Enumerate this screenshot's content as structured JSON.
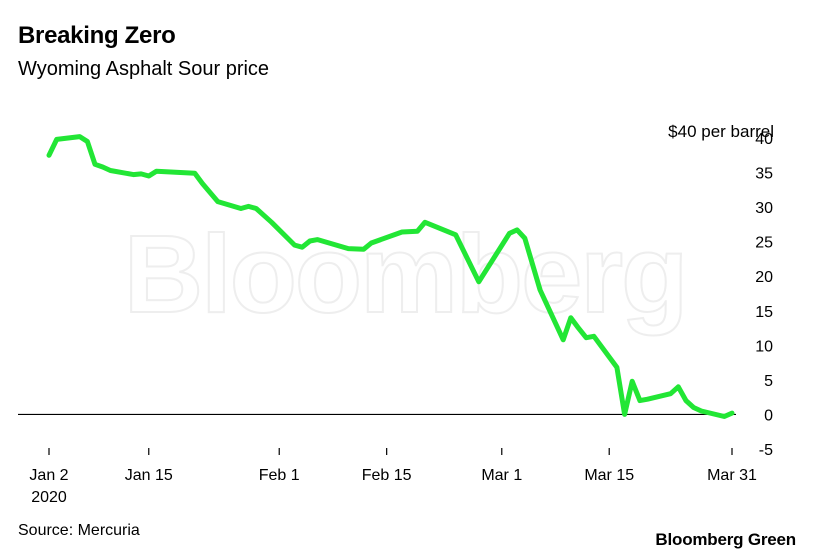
{
  "header": {
    "title": "Breaking Zero",
    "subtitle": "Wyoming Asphalt Sour price"
  },
  "footer": {
    "source": "Source: Mercuria",
    "brand": "Bloomberg Green"
  },
  "watermark": "Bloomberg",
  "colors": {
    "line": "#22e635",
    "zero_line": "#000000",
    "text": "#000000",
    "background": "#ffffff"
  },
  "chart_data": {
    "type": "line",
    "title": "Breaking Zero",
    "subtitle": "Wyoming Asphalt Sour price",
    "ylabel": "$40 per barrel",
    "ylim": [
      -5,
      40
    ],
    "yticks": [
      40,
      35,
      30,
      25,
      20,
      15,
      10,
      5,
      0,
      -5
    ],
    "xlim": [
      "2020-01-02",
      "2020-03-31"
    ],
    "xticks": [
      {
        "date": "2020-01-02",
        "label": "Jan 2",
        "sublabel": "2020"
      },
      {
        "date": "2020-01-15",
        "label": "Jan 15"
      },
      {
        "date": "2020-02-01",
        "label": "Feb 1"
      },
      {
        "date": "2020-02-15",
        "label": "Feb 15"
      },
      {
        "date": "2020-03-01",
        "label": "Mar 1"
      },
      {
        "date": "2020-03-15",
        "label": "Mar 15"
      },
      {
        "date": "2020-03-31",
        "label": "Mar 31"
      }
    ],
    "y_axis_position": "right",
    "grid": false,
    "series": [
      {
        "x": [
          "2020-01-02",
          "2020-01-03",
          "2020-01-06",
          "2020-01-07",
          "2020-01-08",
          "2020-01-09",
          "2020-01-10",
          "2020-01-13",
          "2020-01-14",
          "2020-01-15",
          "2020-01-16",
          "2020-01-21",
          "2020-01-22",
          "2020-01-24",
          "2020-01-27",
          "2020-01-28",
          "2020-01-29",
          "2020-01-31",
          "2020-02-03",
          "2020-02-04",
          "2020-02-05",
          "2020-02-06",
          "2020-02-10",
          "2020-02-12",
          "2020-02-13",
          "2020-02-17",
          "2020-02-19",
          "2020-02-20",
          "2020-02-24",
          "2020-02-27",
          "2020-03-02",
          "2020-03-03",
          "2020-03-04",
          "2020-03-06",
          "2020-03-09",
          "2020-03-10",
          "2020-03-11",
          "2020-03-12",
          "2020-03-13",
          "2020-03-16",
          "2020-03-17",
          "2020-03-18",
          "2020-03-19",
          "2020-03-20",
          "2020-03-23",
          "2020-03-24",
          "2020-03-25",
          "2020-03-26",
          "2020-03-27",
          "2020-03-30",
          "2020-03-31"
        ],
        "values": [
          37.5,
          39.8,
          40.2,
          39.5,
          36.2,
          35.8,
          35.3,
          34.7,
          34.8,
          34.5,
          35.2,
          34.9,
          33.4,
          30.8,
          29.8,
          30.1,
          29.8,
          27.8,
          24.5,
          24.2,
          25.1,
          25.3,
          24.0,
          23.9,
          24.8,
          26.4,
          26.5,
          27.8,
          26.0,
          19.2,
          26.2,
          26.7,
          25.5,
          18.0,
          10.8,
          14.0,
          12.5,
          11.1,
          11.3,
          6.8,
          0.0,
          4.8,
          2.0,
          2.2,
          3.0,
          4.0,
          2.0,
          1.0,
          0.5,
          -0.3,
          0.2
        ]
      }
    ]
  }
}
